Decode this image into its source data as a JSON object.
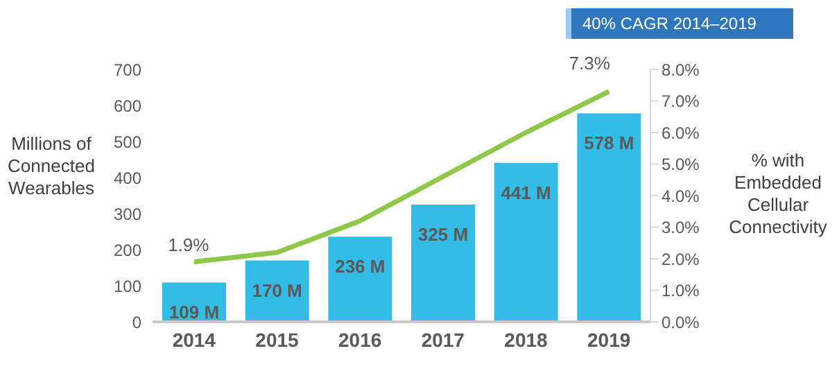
{
  "chart_data": {
    "type": "bar",
    "categories": [
      "2014",
      "2015",
      "2016",
      "2017",
      "2018",
      "2019"
    ],
    "ylabel": "Millions of Connected Wearables",
    "y2label": "% with Embedded Cellular Connectivity",
    "annotations": [
      "40% CAGR 2014–2019"
    ],
    "series": [
      {
        "color": "#33bde6",
        "values": [
          109,
          170,
          236,
          325,
          441,
          578
        ],
        "value_labels": [
          "109 M",
          "170 M",
          "236 M",
          "325 M",
          "441 M",
          "578 M"
        ]
      },
      {
        "type": "line",
        "axis": "y2",
        "color": "#8fc74a",
        "values": [
          1.9,
          2.2,
          3.2,
          4.6,
          6.0,
          7.3
        ],
        "value_labels": [
          "1.9%",
          null,
          null,
          null,
          null,
          "7.3%"
        ]
      }
    ],
    "ylim": [
      0,
      700
    ],
    "yticks": [
      0,
      100,
      200,
      300,
      400,
      500,
      600,
      700
    ],
    "y2lim": [
      0,
      8
    ],
    "y2ticks": [
      {
        "value": 0,
        "label": "0.0%"
      },
      {
        "value": 1,
        "label": "1.0%"
      },
      {
        "value": 2,
        "label": "2.0%"
      },
      {
        "value": 3,
        "label": "3.0%"
      },
      {
        "value": 4,
        "label": "4.0%"
      },
      {
        "value": 5,
        "label": "5.0%"
      },
      {
        "value": 6,
        "label": "6.0%"
      },
      {
        "value": 7,
        "label": "7.0%"
      },
      {
        "value": 8,
        "label": "8.0%"
      }
    ],
    "marker": "none"
  }
}
